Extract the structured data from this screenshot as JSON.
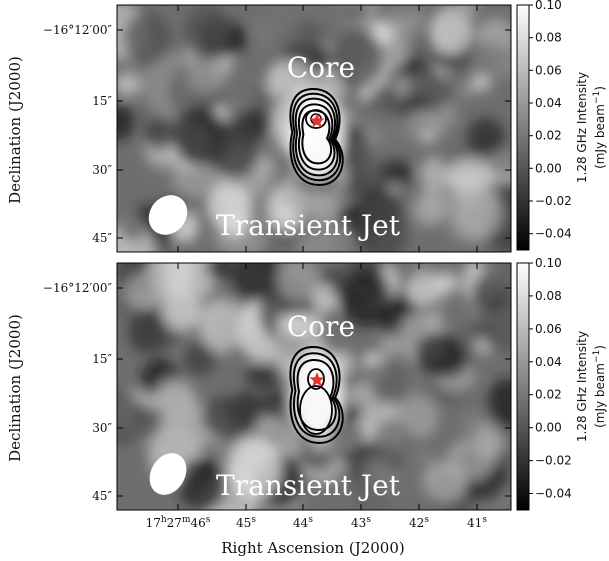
{
  "chart_data": {
    "type": "heatmap",
    "colormap": "greyscale",
    "xlabel": "Right Ascension (J2000)",
    "ylabel": "Declination (J2000)",
    "x_ticks": [
      {
        "label": "17h27m46s",
        "base": "17",
        "sup1": "h",
        "mid": "27",
        "sup2": "m",
        "tail": "46",
        "sup3": "s"
      },
      {
        "label": "45s",
        "base": "45",
        "sup": "s"
      },
      {
        "label": "44s",
        "base": "44",
        "sup": "s"
      },
      {
        "label": "43s",
        "base": "43",
        "sup": "s"
      },
      {
        "label": "42s",
        "base": "42",
        "sup": "s"
      },
      {
        "label": "41s",
        "base": "41",
        "sup": "s"
      }
    ],
    "y_ticks": [
      "−16°12′00″",
      "15″",
      "30″",
      "45″"
    ],
    "colorbar": {
      "label_line1": "1.28 GHz Intensity",
      "label_line2": "(mJy beam",
      "label_sup": "−1",
      "label_close": ")",
      "ticks": [
        "0.10",
        "0.08",
        "0.06",
        "0.04",
        "0.02",
        "0.00",
        "−0.02",
        "−0.04"
      ],
      "tick_values": [
        0.1,
        0.08,
        0.06,
        0.04,
        0.02,
        0.0,
        -0.02,
        -0.04
      ],
      "range": [
        -0.05,
        0.1
      ]
    },
    "panels": [
      {
        "annotation_core": "Core",
        "annotation_jet": "Transient Jet",
        "contour_count": 5,
        "beam_color": "#ffffff",
        "marker": "star",
        "marker_color": "#e8332f"
      },
      {
        "annotation_core": "Core",
        "annotation_jet": "Transient Jet",
        "contour_count": 3,
        "beam_color": "#ffffff",
        "marker": "star",
        "marker_color": "#e8332f"
      }
    ]
  }
}
